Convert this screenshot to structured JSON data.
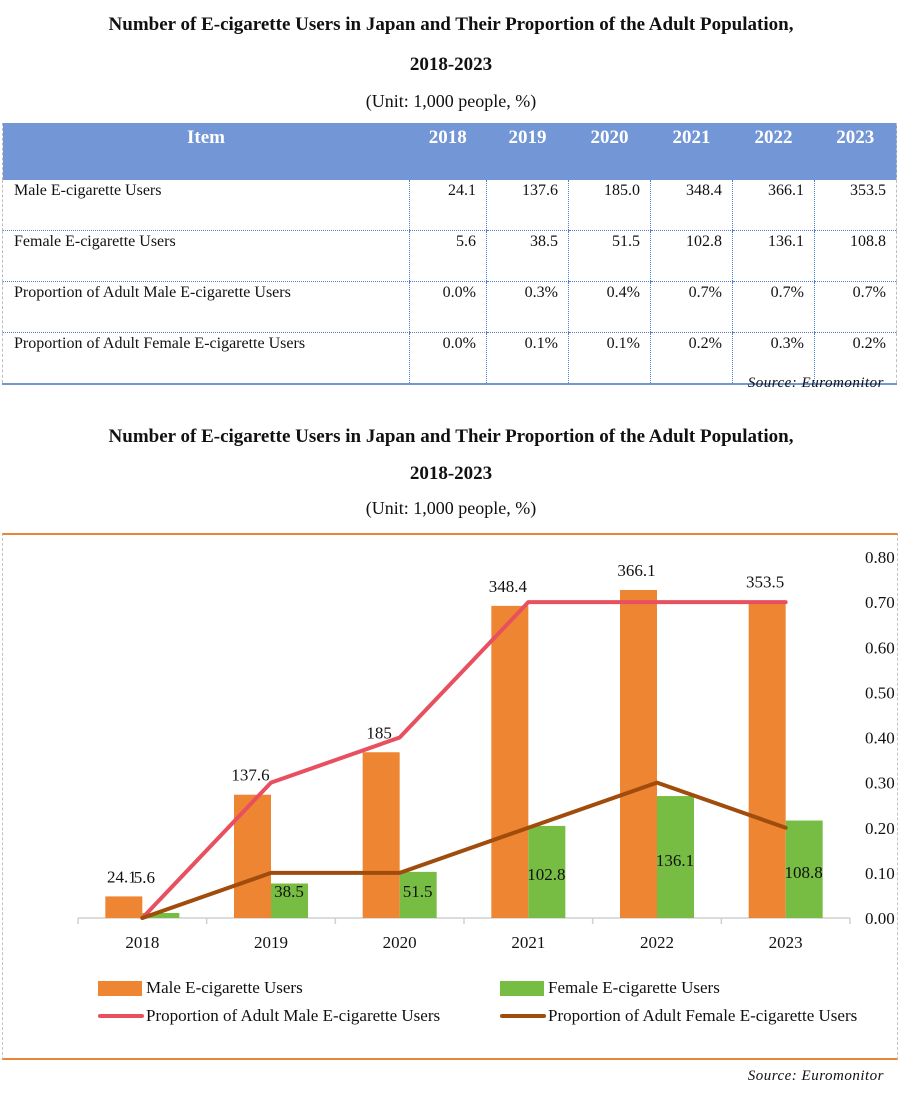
{
  "table_section": {
    "title_line1": "Number of E-cigarette Users in Japan and Their Proportion of the Adult Population,",
    "title_line2": "2018-2023",
    "unit": "(Unit: 1,000 people, %)",
    "headers": [
      "Item",
      "2018",
      "2019",
      "2020",
      "2021",
      "2022",
      "2023"
    ],
    "rows": [
      {
        "label": "Male E-cigarette Users",
        "values": [
          "24.1",
          "137.6",
          "185.0",
          "348.4",
          "366.1",
          "353.5"
        ]
      },
      {
        "label": "Female E-cigarette Users",
        "values": [
          "5.6",
          "38.5",
          "51.5",
          "102.8",
          "136.1",
          "108.8"
        ]
      },
      {
        "label": "Proportion of Adult Male E-cigarette Users",
        "values": [
          "0.0%",
          "0.3%",
          "0.4%",
          "0.7%",
          "0.7%",
          "0.7%"
        ]
      },
      {
        "label": "Proportion of Adult Female  E-cigarette Users",
        "values": [
          "0.0%",
          "0.1%",
          "0.1%",
          "0.2%",
          "0.3%",
          "0.2%"
        ]
      }
    ],
    "source": "Source: Euromonitor"
  },
  "chart_section": {
    "title_line1": "Number of E-cigarette Users in Japan and Their Proportion of the Adult Population,",
    "title_line2": "2018-2023",
    "unit": "(Unit: 1,000 people, %)",
    "source": "Source: Euromonitor"
  },
  "chart_data": {
    "type": "bar",
    "title": "Number of E-cigarette Users in Japan and Their Proportion of the Adult Population, 2018-2023",
    "subtitle": "(Unit: 1,000 people, %)",
    "categories": [
      "2018",
      "2019",
      "2020",
      "2021",
      "2022",
      "2023"
    ],
    "primary_axis": {
      "visible": false,
      "ylim": [
        0,
        400
      ]
    },
    "secondary_axis": {
      "visible": true,
      "position": "right",
      "ylim": [
        0,
        0.8
      ],
      "ticks": [
        "0.00",
        "0.10",
        "0.20",
        "0.30",
        "0.40",
        "0.50",
        "0.60",
        "0.70",
        "0.80"
      ]
    },
    "grid": false,
    "legend_position": "bottom",
    "series": [
      {
        "name": "Male E-cigarette Users",
        "type": "bar",
        "axis": "primary",
        "color": "#ed8532",
        "values": [
          24.1,
          137.6,
          185,
          348.4,
          366.1,
          353.5
        ],
        "labels": [
          "24.1",
          "137.6",
          "185",
          "348.4",
          "366.1",
          "353.5"
        ]
      },
      {
        "name": "Female E-cigarette Users",
        "type": "bar",
        "axis": "primary",
        "color": "#77bd43",
        "values": [
          5.6,
          38.5,
          51.5,
          102.8,
          136.1,
          108.8
        ],
        "labels": [
          "5.6",
          "38.5",
          "51.5",
          "102.8",
          "136.1",
          "108.8"
        ]
      },
      {
        "name": "Proportion of Adult Male E-cigarette Users",
        "type": "line",
        "axis": "secondary",
        "color": "#e8505f",
        "values": [
          0.0,
          0.3,
          0.4,
          0.7,
          0.7,
          0.7
        ]
      },
      {
        "name": "Proportion of Adult Female E-cigarette Users",
        "type": "line",
        "axis": "secondary",
        "color": "#a04c0d",
        "values": [
          0.0,
          0.1,
          0.1,
          0.2,
          0.3,
          0.2
        ]
      }
    ]
  }
}
